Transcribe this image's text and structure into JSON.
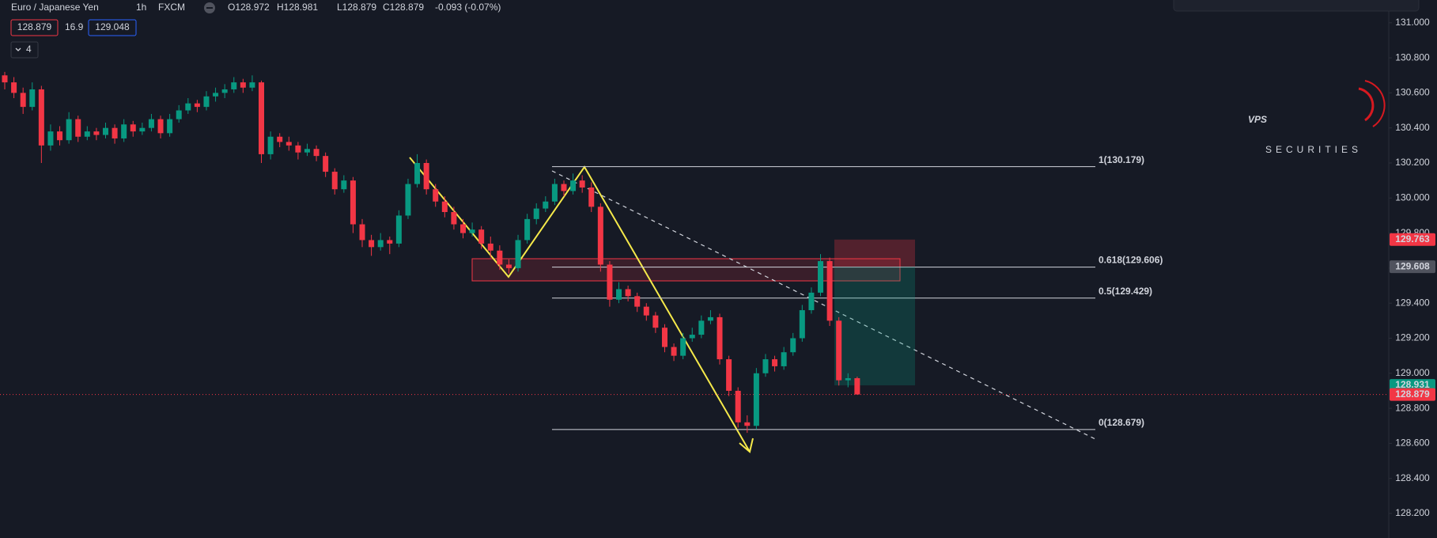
{
  "header": {
    "symbol": "Euro / Japanese Yen",
    "interval": "1h",
    "exchange": "FXCM",
    "open": "O128.972",
    "high": "H128.981",
    "low": "L128.879",
    "close": "C128.879",
    "change": "-0.093 (-0.07%)",
    "bid": "128.879",
    "spread": "16.9",
    "ask": "129.048",
    "indicators": "4"
  },
  "logo": {
    "name": "VPS",
    "tagline": "SECURITIES"
  },
  "chart_data": {
    "type": "candlestick",
    "up_color": "#089981",
    "down_color": "#f23645",
    "ylim": [
      128.06,
      131.13
    ],
    "yticks": [
      {
        "value": 128.2,
        "label": "128.200"
      },
      {
        "value": 128.4,
        "label": "128.400"
      },
      {
        "value": 128.6,
        "label": "128.600"
      },
      {
        "value": 128.8,
        "label": "128.800"
      },
      {
        "value": 129,
        "label": "129.000"
      },
      {
        "value": 129.2,
        "label": "129.200"
      },
      {
        "value": 129.4,
        "label": "129.400"
      },
      {
        "value": 129.6,
        "label": "129.600"
      },
      {
        "value": 129.8,
        "label": "129.800"
      },
      {
        "value": 130,
        "label": "130.000"
      },
      {
        "value": 130.2,
        "label": "130.200"
      },
      {
        "value": 130.4,
        "label": "130.400"
      },
      {
        "value": 130.6,
        "label": "130.600"
      },
      {
        "value": 130.8,
        "label": "130.800"
      },
      {
        "value": 131,
        "label": "131.000"
      }
    ],
    "price_labels": [
      {
        "value": 129.763,
        "label": "129.763",
        "color": "#f23645"
      },
      {
        "value": 129.608,
        "label": "129.608",
        "color": "#50535e"
      },
      {
        "value": 128.931,
        "label": "128.931",
        "color": "#089981"
      },
      {
        "value": 128.879,
        "label": "128.879",
        "color": "#f23645"
      }
    ],
    "fib_levels": [
      {
        "value": 130.179,
        "label": "1(130.179)"
      },
      {
        "value": 129.606,
        "label": "0.618(129.606)"
      },
      {
        "value": 129.429,
        "label": "0.5(129.429)"
      },
      {
        "value": 128.679,
        "label": "0(128.679)"
      }
    ],
    "candles": [
      [
        130.7,
        130.72,
        130.62,
        130.66
      ],
      [
        130.66,
        130.69,
        130.57,
        130.6
      ],
      [
        130.6,
        130.63,
        130.48,
        130.52
      ],
      [
        130.52,
        130.66,
        130.5,
        130.62
      ],
      [
        130.62,
        130.64,
        130.2,
        130.3
      ],
      [
        130.3,
        130.42,
        130.27,
        130.38
      ],
      [
        130.38,
        130.41,
        130.3,
        130.33
      ],
      [
        130.33,
        130.49,
        130.31,
        130.45
      ],
      [
        130.45,
        130.47,
        130.32,
        130.35
      ],
      [
        130.35,
        130.41,
        130.33,
        130.38
      ],
      [
        130.38,
        130.4,
        130.33,
        130.36
      ],
      [
        130.36,
        130.43,
        130.34,
        130.4
      ],
      [
        130.4,
        130.42,
        130.31,
        130.34
      ],
      [
        130.34,
        130.45,
        130.32,
        130.42
      ],
      [
        130.42,
        130.44,
        130.35,
        130.38
      ],
      [
        130.38,
        130.43,
        130.36,
        130.4
      ],
      [
        130.4,
        130.48,
        130.38,
        130.45
      ],
      [
        130.45,
        130.47,
        130.34,
        130.37
      ],
      [
        130.37,
        130.48,
        130.35,
        130.45
      ],
      [
        130.45,
        130.53,
        130.43,
        130.5
      ],
      [
        130.5,
        130.57,
        130.48,
        130.54
      ],
      [
        130.54,
        130.56,
        130.49,
        130.52
      ],
      [
        130.52,
        130.61,
        130.5,
        130.58
      ],
      [
        130.58,
        130.63,
        130.55,
        130.6
      ],
      [
        130.6,
        130.65,
        130.57,
        130.62
      ],
      [
        130.62,
        130.69,
        130.6,
        130.66
      ],
      [
        130.66,
        130.68,
        130.6,
        130.63
      ],
      [
        130.63,
        130.7,
        130.61,
        130.66
      ],
      [
        130.66,
        130.67,
        130.2,
        130.25
      ],
      [
        130.25,
        130.38,
        130.22,
        130.35
      ],
      [
        130.35,
        130.37,
        130.29,
        130.32
      ],
      [
        130.32,
        130.35,
        130.27,
        130.3
      ],
      [
        130.3,
        130.32,
        130.22,
        130.26
      ],
      [
        130.26,
        130.31,
        130.24,
        130.28
      ],
      [
        130.28,
        130.3,
        130.21,
        130.24
      ],
      [
        130.24,
        130.26,
        130.12,
        130.15
      ],
      [
        130.15,
        130.17,
        130.02,
        130.05
      ],
      [
        130.05,
        130.13,
        130.03,
        130.1
      ],
      [
        130.1,
        130.12,
        129.8,
        129.85
      ],
      [
        129.85,
        129.88,
        129.72,
        129.76
      ],
      [
        129.76,
        129.79,
        129.67,
        129.72
      ],
      [
        129.72,
        129.8,
        129.7,
        129.76
      ],
      [
        129.76,
        129.78,
        129.68,
        129.74
      ],
      [
        129.74,
        129.93,
        129.72,
        129.9
      ],
      [
        129.9,
        130.11,
        129.88,
        130.08
      ],
      [
        130.08,
        130.25,
        130.06,
        130.2
      ],
      [
        130.2,
        130.22,
        130.02,
        130.05
      ],
      [
        130.05,
        130.08,
        129.95,
        129.98
      ],
      [
        129.98,
        130.01,
        129.89,
        129.92
      ],
      [
        129.92,
        129.95,
        129.82,
        129.85
      ],
      [
        129.85,
        129.88,
        129.77,
        129.8
      ],
      [
        129.8,
        129.86,
        129.78,
        129.82
      ],
      [
        129.82,
        129.84,
        129.71,
        129.74
      ],
      [
        129.74,
        129.78,
        129.66,
        129.7
      ],
      [
        129.7,
        129.73,
        129.59,
        129.62
      ],
      [
        129.62,
        129.65,
        129.57,
        129.6
      ],
      [
        129.6,
        129.79,
        129.58,
        129.76
      ],
      [
        129.76,
        129.91,
        129.74,
        129.88
      ],
      [
        129.88,
        129.97,
        129.85,
        129.94
      ],
      [
        129.94,
        130.01,
        129.92,
        129.98
      ],
      [
        129.98,
        130.11,
        129.96,
        130.08
      ],
      [
        130.08,
        130.1,
        130.01,
        130.04
      ],
      [
        130.04,
        130.14,
        130.02,
        130.1
      ],
      [
        130.1,
        130.13,
        130.03,
        130.06
      ],
      [
        130.06,
        130.09,
        129.92,
        129.95
      ],
      [
        129.95,
        129.97,
        129.58,
        129.62
      ],
      [
        129.62,
        129.64,
        129.38,
        129.42
      ],
      [
        129.42,
        129.52,
        129.4,
        129.48
      ],
      [
        129.48,
        129.5,
        129.41,
        129.44
      ],
      [
        129.44,
        129.46,
        129.35,
        129.38
      ],
      [
        129.38,
        129.4,
        129.3,
        129.33
      ],
      [
        129.33,
        129.35,
        129.23,
        129.26
      ],
      [
        129.26,
        129.28,
        129.12,
        129.15
      ],
      [
        129.15,
        129.17,
        129.07,
        129.1
      ],
      [
        129.1,
        129.23,
        129.08,
        129.2
      ],
      [
        129.2,
        129.26,
        129.18,
        129.22
      ],
      [
        129.22,
        129.33,
        129.2,
        129.3
      ],
      [
        129.3,
        129.36,
        129.28,
        129.32
      ],
      [
        129.32,
        129.34,
        129.05,
        129.08
      ],
      [
        129.08,
        129.1,
        128.87,
        128.9
      ],
      [
        128.9,
        128.92,
        128.69,
        128.72
      ],
      [
        128.72,
        128.76,
        128.66,
        128.7
      ],
      [
        128.7,
        129.03,
        128.68,
        129.0
      ],
      [
        129.0,
        129.11,
        128.98,
        129.08
      ],
      [
        129.08,
        129.1,
        129.01,
        129.04
      ],
      [
        129.04,
        129.15,
        129.02,
        129.12
      ],
      [
        129.12,
        129.23,
        129.1,
        129.2
      ],
      [
        129.2,
        129.39,
        129.18,
        129.36
      ],
      [
        129.36,
        129.49,
        129.34,
        129.46
      ],
      [
        129.46,
        129.68,
        129.44,
        129.64
      ],
      [
        129.64,
        129.66,
        129.27,
        129.3
      ],
      [
        129.3,
        129.32,
        128.93,
        128.96
      ],
      [
        128.96,
        129.0,
        128.92,
        128.972
      ],
      [
        128.972,
        128.981,
        128.879,
        128.879
      ]
    ]
  }
}
